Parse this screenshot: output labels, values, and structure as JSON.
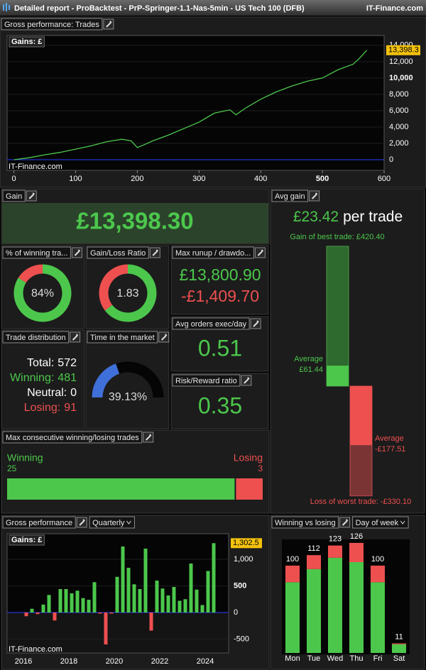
{
  "header": {
    "title": "Detailed report - ProBacktest - PrP-Springer-1.1-Nas-5min - US Tech 100 (DFB)",
    "brand": "IT-Finance.com"
  },
  "panels": {
    "equity": {
      "title": "Gross performance: Trades"
    },
    "gain": {
      "title": "Gain",
      "value": 13398.3,
      "value_label": "£13,398.30"
    },
    "win_rate": {
      "title": "% of winning tra...",
      "value": 84,
      "value_label": "84%"
    },
    "gain_loss_ratio": {
      "title": "Gain/Loss Ratio",
      "value": 1.83
    },
    "max_runup_drawdown": {
      "title": "Max runup / drawdo...",
      "runup": 13800.9,
      "runup_label": "£13,800.90",
      "drawdown": -1409.7,
      "drawdown_label": "-£1,409.70"
    },
    "trade_distribution": {
      "title": "Trade distribution",
      "rows": [
        {
          "label": "Total:",
          "value": 572
        },
        {
          "label": "Winning:",
          "value": 481
        },
        {
          "label": "Neutral:",
          "value": 0
        },
        {
          "label": "Losing:",
          "value": 91
        }
      ]
    },
    "time_in_market": {
      "title": "Time in the market",
      "value": 39.13,
      "value_label": "39.13%"
    },
    "avg_orders": {
      "title": "Avg orders exec/day",
      "value": 0.51
    },
    "risk_reward": {
      "title": "Risk/Reward ratio",
      "value": 0.35
    },
    "consecutive": {
      "title": "Max consecutive winning/losing trades",
      "winning_label": "Winning",
      "winning": 25,
      "losing_label": "Losing",
      "losing": 3
    },
    "avg_gain": {
      "title": "Avg gain",
      "value": 23.42,
      "value_label": "£23.42",
      "unit": "per trade",
      "best_label": "Gain of best trade:",
      "best": 420.4,
      "best_value_label": "£420.40",
      "avg_win_label": "Average",
      "avg_win": 61.44,
      "avg_win_value_label": "£61.44",
      "avg_loss_label": "Average",
      "avg_loss": -177.51,
      "avg_loss_value_label": "-£177.51",
      "worst_label": "Loss of worst trade:",
      "worst": -330.1,
      "worst_value_label": "-£330.10"
    },
    "quarterly": {
      "title": "Gross performance",
      "period": "Quarterly"
    },
    "weekday": {
      "title": "Winning vs losing",
      "period": "Day of week"
    }
  },
  "chart_data": [
    {
      "type": "line",
      "label": "Gains: £",
      "watermark": "IT-Finance.com",
      "color": "#4cc74c",
      "x": [
        0,
        25,
        50,
        75,
        100,
        125,
        150,
        175,
        190,
        200,
        210,
        225,
        250,
        275,
        300,
        325,
        350,
        360,
        375,
        400,
        425,
        450,
        475,
        500,
        525,
        550,
        560,
        572
      ],
      "y": [
        0,
        250,
        600,
        900,
        1300,
        1700,
        2200,
        2500,
        2300,
        1500,
        1800,
        2300,
        3000,
        3800,
        4600,
        5700,
        6100,
        5500,
        6300,
        7400,
        8300,
        9000,
        9600,
        10000,
        11000,
        11700,
        12400,
        13398.3
      ],
      "last_value_label": "13,398.3",
      "xlim": [
        -11,
        600
      ],
      "xticks": [
        0,
        100,
        200,
        300,
        400,
        500,
        600
      ],
      "ylim": [
        -1300,
        15200
      ],
      "yticks": [
        0,
        {
          "value": 2000,
          "label": "2,000"
        },
        {
          "value": 4000,
          "label": "4,000"
        },
        {
          "value": 6000,
          "label": "6,000"
        },
        {
          "value": 8000,
          "label": "8,000"
        },
        {
          "value": 10000,
          "label": "10,000"
        },
        {
          "value": 12000,
          "label": "12,000"
        },
        {
          "value": 14000,
          "label": "14,000"
        }
      ]
    },
    {
      "type": "bar",
      "label": "Gains: £",
      "watermark": "IT-Finance.com",
      "color": "#4cc74c",
      "negative_color": "#ee5050",
      "categories": [
        "2016",
        null,
        null,
        null,
        null,
        null,
        null,
        null,
        "2018",
        null,
        null,
        null,
        null,
        null,
        null,
        null,
        "2020",
        null,
        null,
        null,
        null,
        null,
        null,
        null,
        "2022",
        null,
        null,
        null,
        null,
        null,
        null,
        null,
        "2024",
        null
      ],
      "values": [
        -70,
        70,
        -30,
        150,
        330,
        -150,
        440,
        440,
        360,
        410,
        270,
        240,
        570,
        -20,
        -600,
        -20,
        670,
        1240,
        840,
        530,
        440,
        1200,
        -340,
        600,
        450,
        320,
        480,
        220,
        250,
        920,
        430,
        140,
        780,
        1302.5
      ],
      "last_value_label": "1,302.5",
      "ylim": [
        -760,
        1480
      ],
      "yticks": [
        -500,
        0,
        500,
        {
          "value": 1000,
          "label": "1,000"
        }
      ]
    },
    {
      "type": "stacked_bar",
      "categories": [
        "Mon",
        "Tue",
        "Wed",
        "Thu",
        "Fri",
        "Sat"
      ],
      "series": [
        {
          "color": "#4cc74c",
          "values": [
            81,
            96,
            109,
            104,
            81,
            10
          ]
        },
        {
          "color": "#ee5050",
          "values": [
            19,
            16,
            14,
            22,
            19,
            1
          ]
        }
      ],
      "total_labels": [
        100,
        112,
        123,
        126,
        100,
        11
      ],
      "ylim": [
        0,
        130
      ]
    }
  ]
}
